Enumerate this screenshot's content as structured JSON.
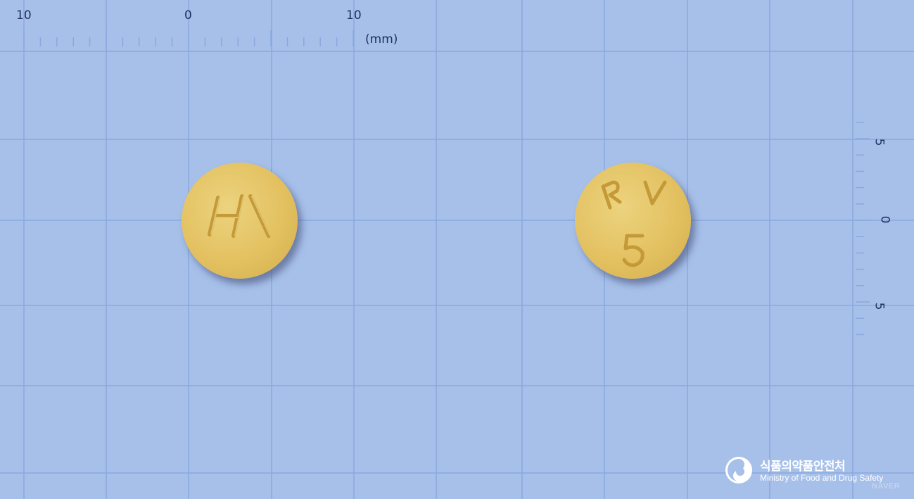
{
  "top_scale": {
    "labels": [
      "10",
      "0",
      "10"
    ],
    "unit": "(mm)"
  },
  "right_scale": {
    "labels": [
      "5",
      "0",
      "5"
    ]
  },
  "pill_front": {
    "imprint": "H\\",
    "color": "#e3c161"
  },
  "pill_back": {
    "imprint_top": "R V",
    "imprint_bottom": "5",
    "color": "#e3c161"
  },
  "watermark": {
    "org_korean": "식품의약품안전처",
    "org_english": "Ministry of Food and Drug Safety",
    "brand": "NAVER"
  },
  "colors": {
    "background": "#a6c0ea",
    "grid": "#8aa8de",
    "scale_ink": "#1f2f5c"
  }
}
